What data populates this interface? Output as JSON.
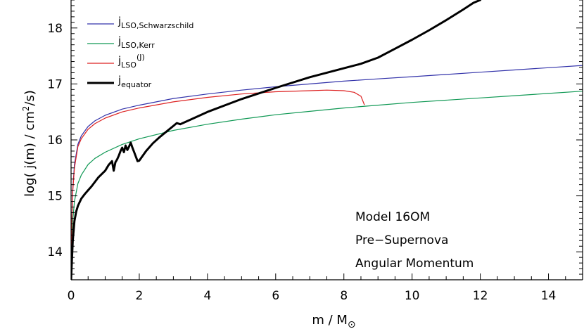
{
  "chart_data": {
    "type": "line",
    "xlabel": "m / M",
    "xlabel_symbol": "⊙",
    "ylabel": "log( j(m) / cm2/s)",
    "xlim": [
      0,
      15
    ],
    "ylim": [
      13.5,
      18.5
    ],
    "x_ticks": [
      0,
      2,
      4,
      6,
      8,
      10,
      12,
      14
    ],
    "y_ticks": [
      14,
      15,
      16,
      17,
      18
    ],
    "legend_position": "top-left",
    "grid": false,
    "annotations": [
      "Model 16OM",
      "Pre−Supernova",
      "Angular Momentum"
    ],
    "series": [
      {
        "name": "jLSO,Schwarzschild",
        "legend_main": "j",
        "legend_sub": "LSO,Schwarzschild",
        "legend_sup": "",
        "color": "#3333aa",
        "width": 1.2,
        "x": [
          0.0,
          0.02,
          0.05,
          0.1,
          0.2,
          0.3,
          0.5,
          0.7,
          1.0,
          1.5,
          2.0,
          3.0,
          4.0,
          5.0,
          6.0,
          7.0,
          8.0,
          9.0,
          10.0,
          11.0,
          12.0,
          13.0,
          14.0,
          15.0
        ],
        "y": [
          13.5,
          14.52,
          15.12,
          15.56,
          15.92,
          16.07,
          16.24,
          16.34,
          16.44,
          16.55,
          16.62,
          16.74,
          16.82,
          16.89,
          16.95,
          17.0,
          17.05,
          17.09,
          17.13,
          17.17,
          17.21,
          17.25,
          17.29,
          17.33
        ]
      },
      {
        "name": "jLSO,Kerr",
        "legend_main": "j",
        "legend_sub": "LSO,Kerr",
        "legend_sup": "",
        "color": "#119955",
        "width": 1.2,
        "x": [
          0.0,
          0.02,
          0.05,
          0.1,
          0.2,
          0.3,
          0.5,
          0.7,
          1.0,
          1.5,
          2.0,
          3.0,
          4.0,
          5.0,
          6.0,
          7.0,
          8.0,
          9.0,
          10.0,
          11.0,
          12.0,
          13.0,
          14.0,
          15.0
        ],
        "y": [
          13.5,
          14.1,
          14.55,
          14.9,
          15.22,
          15.37,
          15.56,
          15.67,
          15.78,
          15.92,
          16.02,
          16.17,
          16.28,
          16.37,
          16.45,
          16.51,
          16.57,
          16.62,
          16.67,
          16.71,
          16.75,
          16.79,
          16.83,
          16.87
        ]
      },
      {
        "name": "jLSO(J)",
        "legend_main": "j",
        "legend_sub": "LSO",
        "legend_sup": "(J)",
        "color": "#dd2222",
        "width": 1.2,
        "x": [
          0.0,
          0.02,
          0.05,
          0.1,
          0.2,
          0.3,
          0.5,
          0.7,
          1.0,
          1.5,
          2.0,
          3.0,
          4.0,
          5.0,
          6.0,
          7.0,
          7.5,
          8.0,
          8.3,
          8.5,
          8.6
        ],
        "y": [
          13.5,
          14.5,
          15.08,
          15.5,
          15.88,
          16.02,
          16.19,
          16.29,
          16.39,
          16.5,
          16.57,
          16.68,
          16.76,
          16.82,
          16.86,
          16.88,
          16.89,
          16.88,
          16.85,
          16.78,
          16.63
        ]
      },
      {
        "name": "jequator",
        "legend_main": "j",
        "legend_sub": "equator",
        "legend_sup": "",
        "color": "#000000",
        "width": 3,
        "x": [
          0.0,
          0.05,
          0.1,
          0.15,
          0.2,
          0.3,
          0.4,
          0.5,
          0.6,
          0.8,
          1.0,
          1.1,
          1.2,
          1.25,
          1.3,
          1.35,
          1.4,
          1.45,
          1.5,
          1.55,
          1.6,
          1.65,
          1.7,
          1.75,
          1.8,
          1.85,
          1.9,
          1.95,
          2.0,
          2.2,
          2.4,
          2.6,
          2.8,
          3.0,
          3.1,
          3.2,
          3.5,
          4.0,
          5.0,
          6.0,
          7.0,
          8.0,
          8.5,
          9.0,
          9.5,
          10.0,
          10.5,
          11.0,
          11.5,
          11.8,
          12.0
        ],
        "y": [
          13.5,
          14.2,
          14.55,
          14.72,
          14.82,
          14.95,
          15.03,
          15.1,
          15.17,
          15.33,
          15.45,
          15.55,
          15.62,
          15.45,
          15.6,
          15.65,
          15.72,
          15.8,
          15.86,
          15.78,
          15.9,
          15.82,
          15.88,
          15.95,
          15.86,
          15.78,
          15.7,
          15.62,
          15.63,
          15.8,
          15.94,
          16.05,
          16.15,
          16.25,
          16.3,
          16.28,
          16.36,
          16.5,
          16.73,
          16.93,
          17.12,
          17.28,
          17.36,
          17.47,
          17.63,
          17.79,
          17.96,
          18.14,
          18.33,
          18.45,
          18.5
        ]
      }
    ]
  }
}
